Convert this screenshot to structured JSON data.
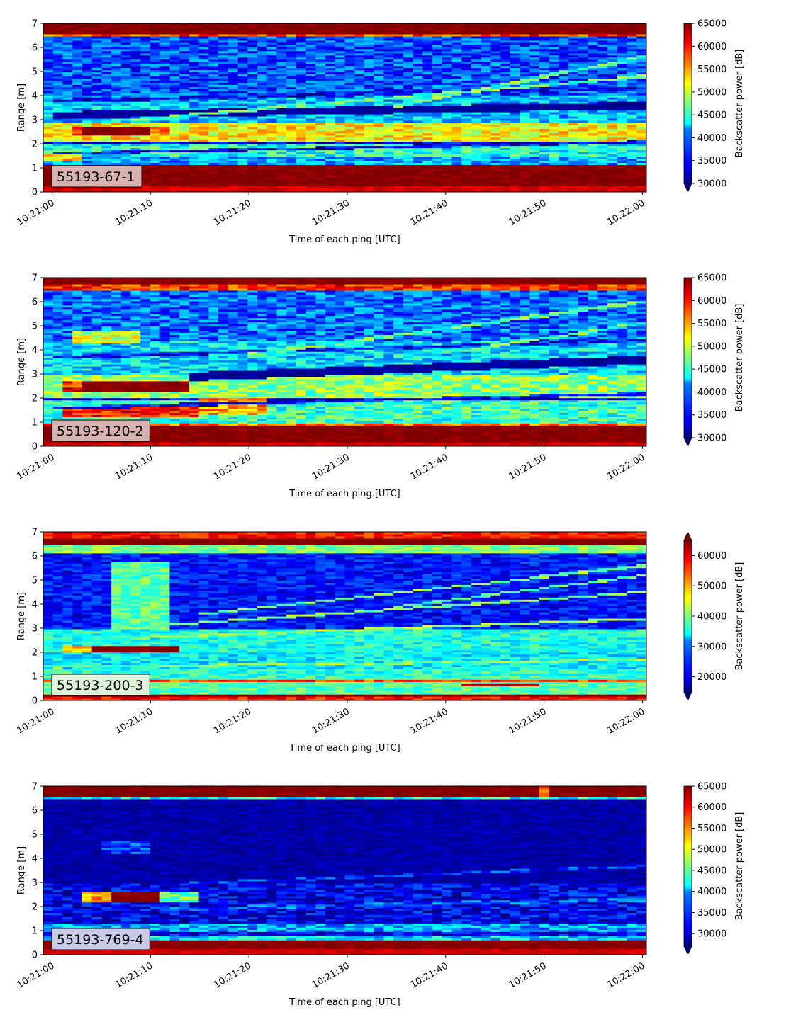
{
  "chart_data": [
    {
      "type": "heatmap",
      "label_box": "55193-67-1",
      "label_box_color": "#d8b1b1",
      "xlabel": "Time of each ping [UTC]",
      "ylabel": "Range [m]",
      "x_ticks": [
        "10:21:00",
        "10:21:10",
        "10:21:20",
        "10:21:30",
        "10:21:40",
        "10:21:50",
        "10:22:00"
      ],
      "y_ticks": [
        0,
        1,
        2,
        3,
        4,
        5,
        6,
        7
      ],
      "xlim_seconds": [
        -0.9,
        60.4
      ],
      "ylim": [
        0,
        7
      ],
      "colorbar": {
        "label": "Backscatter power [dB]",
        "vmin": 30000,
        "vmax": 65000,
        "ticks": [
          30000,
          35000,
          40000,
          45000,
          50000,
          55000,
          60000,
          65000
        ],
        "extend": "min"
      },
      "colormap": "jet",
      "bands": [
        {
          "y0": 0.0,
          "y1": 0.25,
          "v": 62000
        },
        {
          "y0": 0.25,
          "y1": 1.1,
          "v": 65000
        },
        {
          "y0": 1.1,
          "y1": 1.5,
          "v": 40000
        },
        {
          "y0": 1.5,
          "y1": 2.0,
          "v": 44000
        },
        {
          "y0": 2.0,
          "y1": 2.1,
          "v": 33000
        },
        {
          "y0": 2.1,
          "y1": 2.9,
          "v": 52000
        },
        {
          "y0": 2.9,
          "y1": 4.0,
          "v": 41000
        },
        {
          "y0": 4.0,
          "y1": 6.5,
          "v": 37000
        },
        {
          "y0": 6.5,
          "y1": 6.6,
          "v": 58000
        },
        {
          "y0": 6.6,
          "y1": 7.0,
          "v": 65000
        }
      ],
      "features": [
        {
          "x0": 3.5,
          "x1": 9.5,
          "y0": 2.35,
          "y1": 2.75,
          "v": 65000
        },
        {
          "x0": 2.0,
          "x1": 3.5,
          "y0": 2.35,
          "y1": 2.75,
          "v": 60000
        },
        {
          "x0": 9.5,
          "x1": 11.5,
          "y0": 2.35,
          "y1": 2.75,
          "v": 57000
        },
        {
          "x0": -0.9,
          "x1": 3.0,
          "y0": 1.35,
          "y1": 1.6,
          "v": 53000
        }
      ],
      "trails": [
        {
          "x0": 0,
          "x1": 60,
          "y0": 1.6,
          "y1": 2.1,
          "w": 0.12,
          "v": 34000
        },
        {
          "x0": 0,
          "x1": 60,
          "y0": 3.2,
          "y1": 3.6,
          "w": 0.3,
          "v": 31000
        },
        {
          "x0": 0,
          "x1": 60,
          "y0": 3.8,
          "y1": 4.3,
          "w": 0.15,
          "v": 34000
        },
        {
          "x0": 8,
          "x1": 60,
          "y0": 3.0,
          "y1": 4.8,
          "w": 0.12,
          "v": 46000
        },
        {
          "x0": 35,
          "x1": 60,
          "y0": 3.6,
          "y1": 5.6,
          "w": 0.15,
          "v": 46000
        }
      ]
    },
    {
      "type": "heatmap",
      "label_box": "55193-120-2",
      "label_box_color": "#d8b1b1",
      "xlabel": "Time of each ping [UTC]",
      "ylabel": "Range [m]",
      "x_ticks": [
        "10:21:00",
        "10:21:10",
        "10:21:20",
        "10:21:30",
        "10:21:40",
        "10:21:50",
        "10:22:00"
      ],
      "y_ticks": [
        0,
        1,
        2,
        3,
        4,
        5,
        6,
        7
      ],
      "xlim_seconds": [
        -0.9,
        60.4
      ],
      "ylim": [
        0,
        7
      ],
      "colorbar": {
        "label": "Backscatter power [dB]",
        "vmin": 30000,
        "vmax": 65000,
        "ticks": [
          30000,
          35000,
          40000,
          45000,
          50000,
          55000,
          60000,
          65000
        ],
        "extend": "min"
      },
      "colormap": "jet",
      "bands": [
        {
          "y0": 0.0,
          "y1": 0.2,
          "v": 62000
        },
        {
          "y0": 0.2,
          "y1": 0.85,
          "v": 65000
        },
        {
          "y0": 0.85,
          "y1": 1.0,
          "v": 57000
        },
        {
          "y0": 1.0,
          "y1": 1.9,
          "v": 45000
        },
        {
          "y0": 1.9,
          "y1": 2.0,
          "v": 33000
        },
        {
          "y0": 2.0,
          "y1": 3.0,
          "v": 48000
        },
        {
          "y0": 3.0,
          "y1": 4.4,
          "v": 42000
        },
        {
          "y0": 4.4,
          "y1": 6.5,
          "v": 38000
        },
        {
          "y0": 6.5,
          "y1": 6.7,
          "v": 59000
        },
        {
          "y0": 6.7,
          "y1": 7.0,
          "v": 65000
        }
      ],
      "features": [
        {
          "x0": 3.0,
          "x1": 13.5,
          "y0": 2.3,
          "y1": 2.75,
          "v": 65000
        },
        {
          "x0": 1.0,
          "x1": 3.0,
          "y0": 2.3,
          "y1": 2.75,
          "v": 60000
        },
        {
          "x0": 1.0,
          "x1": 14.5,
          "y0": 1.2,
          "y1": 1.65,
          "v": 60000
        },
        {
          "x0": 14.5,
          "x1": 22.0,
          "y0": 1.3,
          "y1": 2.0,
          "v": 55000
        },
        {
          "x0": 2.0,
          "x1": 9.0,
          "y0": 4.3,
          "y1": 4.8,
          "v": 50000
        }
      ],
      "trails": [
        {
          "x0": 0,
          "x1": 60,
          "y0": 1.6,
          "y1": 2.2,
          "w": 0.12,
          "v": 34000
        },
        {
          "x0": 14,
          "x1": 60,
          "y0": 2.9,
          "y1": 3.6,
          "w": 0.35,
          "v": 31000
        },
        {
          "x0": 0,
          "x1": 60,
          "y0": 3.7,
          "y1": 4.4,
          "w": 0.15,
          "v": 35000
        },
        {
          "x0": 20,
          "x1": 60,
          "y0": 3.8,
          "y1": 6.0,
          "w": 0.15,
          "v": 46000
        },
        {
          "x0": 40,
          "x1": 60,
          "y0": 3.9,
          "y1": 5.1,
          "w": 0.12,
          "v": 46000
        }
      ]
    },
    {
      "type": "heatmap",
      "label_box": "55193-200-3",
      "label_box_color": "#dff3dc",
      "xlabel": "Time of each ping [UTC]",
      "ylabel": "Range [m]",
      "x_ticks": [
        "10:21:00",
        "10:21:10",
        "10:21:20",
        "10:21:30",
        "10:21:40",
        "10:21:50",
        "10:22:00"
      ],
      "y_ticks": [
        0,
        1,
        2,
        3,
        4,
        5,
        6,
        7
      ],
      "xlim_seconds": [
        -0.9,
        60.4
      ],
      "ylim": [
        0,
        7
      ],
      "colorbar": {
        "label": "Backscatter power [dB]",
        "vmin": 15000,
        "vmax": 65000,
        "ticks": [
          20000,
          30000,
          40000,
          50000,
          60000
        ],
        "extend": "both"
      },
      "colormap": "jet",
      "bands": [
        {
          "y0": 0.0,
          "y1": 0.15,
          "v": 58000
        },
        {
          "y0": 0.15,
          "y1": 0.3,
          "v": 65000
        },
        {
          "y0": 0.3,
          "y1": 0.75,
          "v": 38000
        },
        {
          "y0": 0.75,
          "y1": 0.85,
          "v": 55000
        },
        {
          "y0": 0.85,
          "y1": 1.3,
          "v": 36000
        },
        {
          "y0": 1.3,
          "y1": 2.0,
          "v": 33000
        },
        {
          "y0": 2.0,
          "y1": 3.0,
          "v": 35000
        },
        {
          "y0": 3.0,
          "y1": 6.1,
          "v": 22000
        },
        {
          "y0": 6.1,
          "y1": 6.5,
          "v": 40000
        },
        {
          "y0": 6.5,
          "y1": 6.7,
          "v": 65000
        },
        {
          "y0": 6.7,
          "y1": 7.0,
          "v": 58000
        }
      ],
      "features": [
        {
          "x0": 4.0,
          "x1": 13.0,
          "y0": 2.05,
          "y1": 2.3,
          "v": 65000
        },
        {
          "x0": 1.0,
          "x1": 4.0,
          "y0": 2.05,
          "y1": 2.3,
          "v": 50000
        },
        {
          "x0": 6.0,
          "x1": 11.5,
          "y0": 3.0,
          "y1": 5.8,
          "v": 38000
        },
        {
          "x0": 42,
          "x1": 50,
          "y0": 0.6,
          "y1": 0.7,
          "v": 62000
        }
      ],
      "trails": [
        {
          "x0": 0,
          "x1": 60,
          "y0": 1.4,
          "y1": 1.7,
          "w": 0.1,
          "v": 40000
        },
        {
          "x0": 8,
          "x1": 60,
          "y0": 2.6,
          "y1": 3.4,
          "w": 0.1,
          "v": 42000
        },
        {
          "x0": 10,
          "x1": 60,
          "y0": 3.1,
          "y1": 4.5,
          "w": 0.1,
          "v": 40000
        },
        {
          "x0": 15,
          "x1": 60,
          "y0": 3.6,
          "y1": 5.6,
          "w": 0.1,
          "v": 40000
        },
        {
          "x0": 35,
          "x1": 60,
          "y0": 3.9,
          "y1": 5.2,
          "w": 0.1,
          "v": 38000
        }
      ]
    },
    {
      "type": "heatmap",
      "label_box": "55193-769-4",
      "label_box_color": "#c9c9e8",
      "xlabel": "Time of each ping [UTC]",
      "ylabel": "Range [m]",
      "x_ticks": [
        "10:21:00",
        "10:21:10",
        "10:21:20",
        "10:21:30",
        "10:21:40",
        "10:21:50",
        "10:22:00"
      ],
      "y_ticks": [
        0,
        1,
        2,
        3,
        4,
        5,
        6,
        7
      ],
      "xlim_seconds": [
        -0.9,
        60.4
      ],
      "ylim": [
        0,
        7
      ],
      "colorbar": {
        "label": "Backscatter power [dB]",
        "vmin": 27000,
        "vmax": 65000,
        "ticks": [
          30000,
          35000,
          40000,
          45000,
          50000,
          55000,
          60000,
          65000
        ],
        "extend": "min"
      },
      "colormap": "jet",
      "bands": [
        {
          "y0": 0.0,
          "y1": 0.25,
          "v": 62000
        },
        {
          "y0": 0.25,
          "y1": 0.65,
          "v": 65000
        },
        {
          "y0": 0.65,
          "y1": 0.75,
          "v": 40000
        },
        {
          "y0": 0.75,
          "y1": 1.0,
          "v": 31000
        },
        {
          "y0": 1.0,
          "y1": 1.3,
          "v": 38000
        },
        {
          "y0": 1.3,
          "y1": 3.0,
          "v": 31000
        },
        {
          "y0": 3.0,
          "y1": 6.5,
          "v": 28500
        },
        {
          "y0": 6.5,
          "y1": 6.6,
          "v": 42000
        },
        {
          "y0": 6.6,
          "y1": 7.0,
          "v": 65000
        }
      ],
      "features": [
        {
          "x0": 6.5,
          "x1": 10.5,
          "y0": 2.2,
          "y1": 2.6,
          "v": 65000
        },
        {
          "x0": 3.5,
          "x1": 6.5,
          "y0": 2.2,
          "y1": 2.6,
          "v": 55000
        },
        {
          "x0": 10.5,
          "x1": 14.5,
          "y0": 2.2,
          "y1": 2.6,
          "v": 45000
        },
        {
          "x0": 49.5,
          "x1": 50.5,
          "y0": 6.6,
          "y1": 7.0,
          "v": 58000
        },
        {
          "x0": 5.5,
          "x1": 10.0,
          "y0": 4.2,
          "y1": 4.7,
          "v": 34000
        }
      ],
      "trails": [
        {
          "x0": 10,
          "x1": 60,
          "y0": 2.9,
          "y1": 3.7,
          "w": 0.12,
          "v": 33000
        },
        {
          "x0": 10,
          "x1": 60,
          "y0": 1.9,
          "y1": 2.3,
          "w": 0.15,
          "v": 35000
        }
      ]
    }
  ]
}
